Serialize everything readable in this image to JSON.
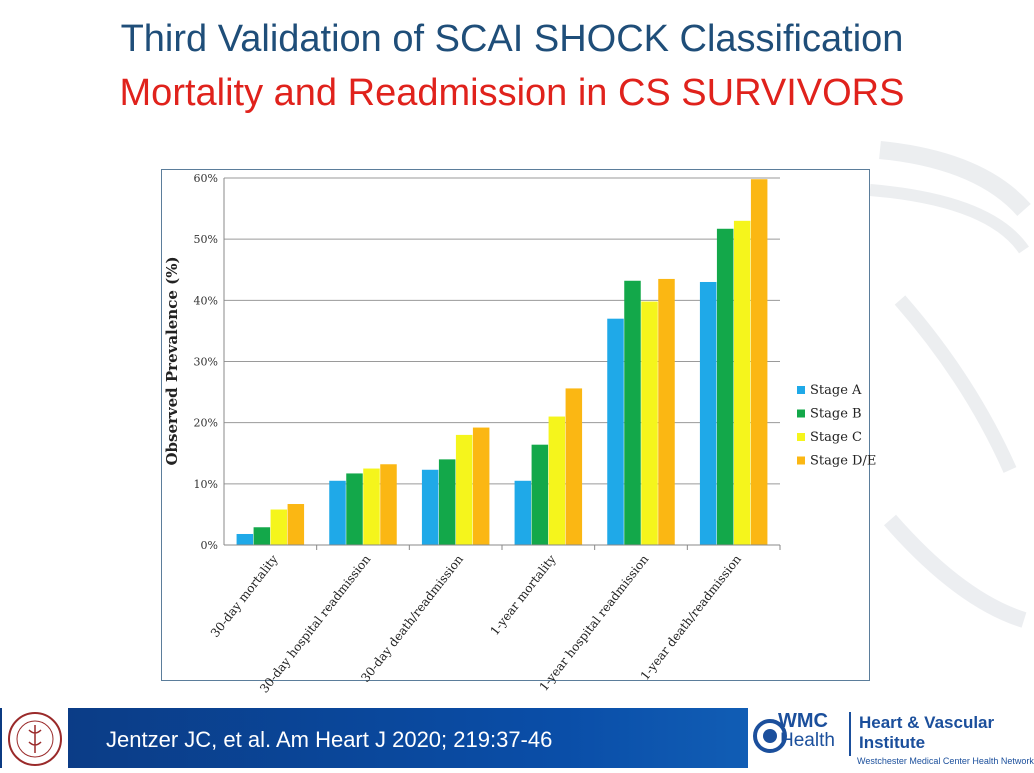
{
  "slide": {
    "title": "Third Validation of SCAI SHOCK Classification",
    "subtitle": "Mortality and Readmission in CS SURVIVORS",
    "citation": "Jentzer JC, et al. Am Heart J 2020; 219:37-46"
  },
  "logos": {
    "wmc": "WMC",
    "health": "Health",
    "institute_line1": "Heart & Vascular",
    "institute_line2": "Institute",
    "network": "Westchester Medical Center Health Network"
  },
  "colors": {
    "title": "#1f4e79",
    "subtitle": "#e0221c",
    "footer": "#0a4ea8",
    "stage_a": "#1fa9e8",
    "stage_b": "#13a84a",
    "stage_c": "#f5f51c",
    "stage_de": "#fbb713"
  },
  "chart_data": {
    "type": "bar",
    "ylabel": "Observed Prevalence (%)",
    "ylim": [
      0,
      60
    ],
    "yticks": [
      0,
      10,
      20,
      30,
      40,
      50,
      60
    ],
    "ytick_labels": [
      "0%",
      "10%",
      "20%",
      "30%",
      "40%",
      "50%",
      "60%"
    ],
    "grid": true,
    "legend_position": "right",
    "categories": [
      "30-day mortality",
      "30-day hospital readmission",
      "30-day death/readmission",
      "1-year mortality",
      "1-year hospital readmission",
      "1-year death/readmission"
    ],
    "series": [
      {
        "name": "Stage A",
        "color": "#1fa9e8",
        "values": [
          1.8,
          10.5,
          12.3,
          10.5,
          37,
          43
        ]
      },
      {
        "name": "Stage B",
        "color": "#13a84a",
        "values": [
          2.9,
          11.7,
          14,
          16.4,
          43.2,
          51.7
        ]
      },
      {
        "name": "Stage C",
        "color": "#f5f51c",
        "values": [
          5.8,
          12.5,
          18,
          21,
          39.8,
          53
        ]
      },
      {
        "name": "Stage D/E",
        "color": "#fbb713",
        "values": [
          6.7,
          13.2,
          19.2,
          25.6,
          43.5,
          59.8
        ]
      }
    ]
  }
}
